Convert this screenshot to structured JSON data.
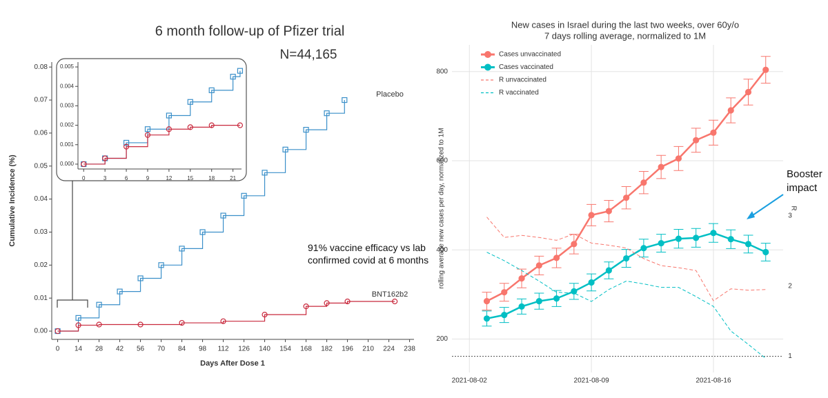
{
  "chart_data": [
    {
      "type": "line",
      "title": "6 month follow-up of Pfizer trial",
      "subtitle": "N=44,165",
      "annotation": "91% vaccine efficacy vs lab confirmed covid at 6 months",
      "xlabel": "Days After Dose 1",
      "ylabel": "Cumulative Incidence (%)",
      "xlim": [
        -4,
        241
      ],
      "ylim": [
        -0.0025,
        0.0815
      ],
      "xticks": [
        0,
        14,
        28,
        42,
        56,
        70,
        84,
        98,
        112,
        126,
        140,
        154,
        168,
        182,
        196,
        210,
        224,
        238
      ],
      "yticks": [
        {
          "value": 0,
          "label": "0.00"
        },
        {
          "value": 0.01,
          "label": "0.01"
        },
        {
          "value": 0.02,
          "label": "0.02"
        },
        {
          "value": 0.03,
          "label": "0.03"
        },
        {
          "value": 0.04,
          "label": "0.04"
        },
        {
          "value": 0.05,
          "label": "0.05"
        },
        {
          "value": 0.06,
          "label": "0.06"
        },
        {
          "value": 0.07,
          "label": "0.07"
        },
        {
          "value": 0.08,
          "label": "0.08"
        }
      ],
      "grid": false,
      "step": true,
      "series": [
        {
          "name": "Placebo",
          "color": "#3a8fc9",
          "marker": "square",
          "x": [
            0,
            14,
            28,
            42,
            56,
            70,
            84,
            98,
            112,
            126,
            140,
            154,
            168,
            182,
            194
          ],
          "values": [
            0,
            0.004,
            0.008,
            0.012,
            0.016,
            0.02,
            0.025,
            0.03,
            0.035,
            0.041,
            0.048,
            0.055,
            0.061,
            0.066,
            0.07
          ]
        },
        {
          "name": "BNT162b2",
          "color": "#c8283c",
          "marker": "circle",
          "x": [
            0,
            14,
            28,
            56,
            84,
            112,
            140,
            168,
            182,
            196,
            228
          ],
          "values": [
            0,
            0.0018,
            0.002,
            0.002,
            0.0025,
            0.003,
            0.005,
            0.0075,
            0.0085,
            0.009,
            0.009
          ]
        }
      ]
    },
    {
      "type": "line",
      "xlim": [
        -0.8,
        22.2
      ],
      "ylim": [
        -0.00025,
        0.00525
      ],
      "xticks": [
        0,
        3,
        6,
        9,
        12,
        15,
        18,
        21
      ],
      "yticks": [
        {
          "value": 0,
          "label": "0.000"
        },
        {
          "value": 0.001,
          "label": "0.001"
        },
        {
          "value": 0.002,
          "label": "0.002"
        },
        {
          "value": 0.003,
          "label": "0.003"
        },
        {
          "value": 0.004,
          "label": "0.004"
        },
        {
          "value": 0.005,
          "label": "0.005"
        }
      ],
      "grid": false,
      "step": true,
      "series": [
        {
          "color": "#3a8fc9",
          "marker": "square",
          "x": [
            0,
            3,
            6,
            9,
            12,
            15,
            18,
            21,
            22
          ],
          "values": [
            0,
            0.0003,
            0.0011,
            0.0018,
            0.0025,
            0.0032,
            0.0038,
            0.0045,
            0.0048
          ]
        },
        {
          "color": "#c8283c",
          "marker": "circle",
          "x": [
            0,
            3,
            6,
            9,
            12,
            15,
            18,
            22
          ],
          "values": [
            0,
            0.0003,
            0.0009,
            0.0015,
            0.0018,
            0.0019,
            0.002,
            0.002
          ]
        }
      ]
    },
    {
      "type": "line",
      "title": "New cases in Israel during the last two weeks, over 60y/o",
      "subtitle": "7 days rolling average, normalized to 1M",
      "annotation": "Booster impact",
      "ylabel": "rolling average new cases per day, normalized to 1M",
      "y2label": "R",
      "xlim": [
        "2021-08-01",
        "2021-08-20"
      ],
      "ylim": [
        125,
        860
      ],
      "y2lim": [
        0.77,
        5.43
      ],
      "xticks": [
        "2021-08-02",
        "2021-08-09",
        "2021-08-16"
      ],
      "yticks": [
        200,
        400,
        600,
        800
      ],
      "y2ticks": [
        1,
        2,
        3
      ],
      "grid": true,
      "step": false,
      "legend": "top-left",
      "reference_line": {
        "value": 1,
        "axis": "y2"
      },
      "x": [
        "2021-08-03",
        "2021-08-04",
        "2021-08-05",
        "2021-08-06",
        "2021-08-07",
        "2021-08-08",
        "2021-08-09",
        "2021-08-10",
        "2021-08-11",
        "2021-08-12",
        "2021-08-13",
        "2021-08-14",
        "2021-08-15",
        "2021-08-16",
        "2021-08-17",
        "2021-08-18",
        "2021-08-19"
      ],
      "series": [
        {
          "name": "Cases unvaccinated",
          "color": "#f8766d",
          "marker": "circle",
          "values": [
            285,
            305,
            336,
            365,
            382,
            413,
            478,
            487,
            517,
            551,
            586,
            605,
            646,
            663,
            713,
            754,
            804
          ],
          "errors": [
            20,
            20,
            21,
            21,
            22,
            22,
            24,
            24,
            25,
            25,
            26,
            27,
            27,
            28,
            28,
            29,
            30
          ]
        },
        {
          "name": "Cases vaccinated",
          "color": "#00bfc4",
          "marker": "circle",
          "values": [
            246,
            254,
            273,
            285,
            291,
            307,
            327,
            354,
            381,
            404,
            415,
            425,
            427,
            438,
            424,
            413,
            395
          ],
          "errors": [
            17,
            17,
            17,
            18,
            18,
            18,
            19,
            19,
            20,
            20,
            20,
            21,
            21,
            21,
            21,
            20,
            20
          ]
        },
        {
          "name": "R unvaccinated",
          "color": "#f8766d",
          "dashed": true,
          "axis": "y2",
          "values": [
            2.98,
            2.69,
            2.72,
            2.69,
            2.65,
            2.74,
            2.61,
            2.58,
            2.54,
            2.39,
            2.29,
            2.26,
            2.22,
            1.79,
            1.96,
            1.94,
            1.95
          ]
        },
        {
          "name": "R vaccinated",
          "color": "#00bfc4",
          "dashed": true,
          "axis": "y2",
          "values": [
            2.48,
            2.36,
            2.22,
            2.07,
            1.91,
            1.9,
            1.78,
            1.95,
            2.07,
            2.03,
            1.98,
            1.98,
            1.85,
            1.71,
            1.36,
            1.17,
            0.97
          ]
        }
      ]
    }
  ]
}
